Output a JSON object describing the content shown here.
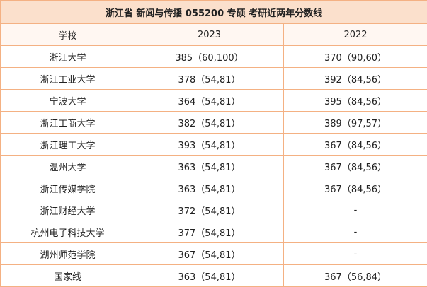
{
  "title": "浙江省 新闻与传播 055200 专硕 考研近两年分数线",
  "table": {
    "header": [
      "学校",
      "2023",
      "2022"
    ],
    "rows": [
      [
        "浙江大学",
        "385（60,100）",
        "370（90,60）"
      ],
      [
        "浙江工业大学",
        "378（54,81）",
        "392（84,56）"
      ],
      [
        "宁波大学",
        "364（54,81）",
        "395（84,56）"
      ],
      [
        "浙江工商大学",
        "382（54,81）",
        "389（97,57）"
      ],
      [
        "浙江理工大学",
        "393（54,81）",
        "367（84,56）"
      ],
      [
        "温州大学",
        "363（54,81）",
        "367（84,56）"
      ],
      [
        "浙江传媒学院",
        "363（54,81）",
        "367（84,56）"
      ],
      [
        "浙江财经大学",
        "372（54,81）",
        "-"
      ],
      [
        "杭州电子科技大学",
        "377（54,81）",
        "-"
      ],
      [
        "湖州师范学院",
        "367（54,81）",
        "-"
      ],
      [
        "国家线",
        "363（54,81）",
        "367（56,84）"
      ]
    ]
  }
}
